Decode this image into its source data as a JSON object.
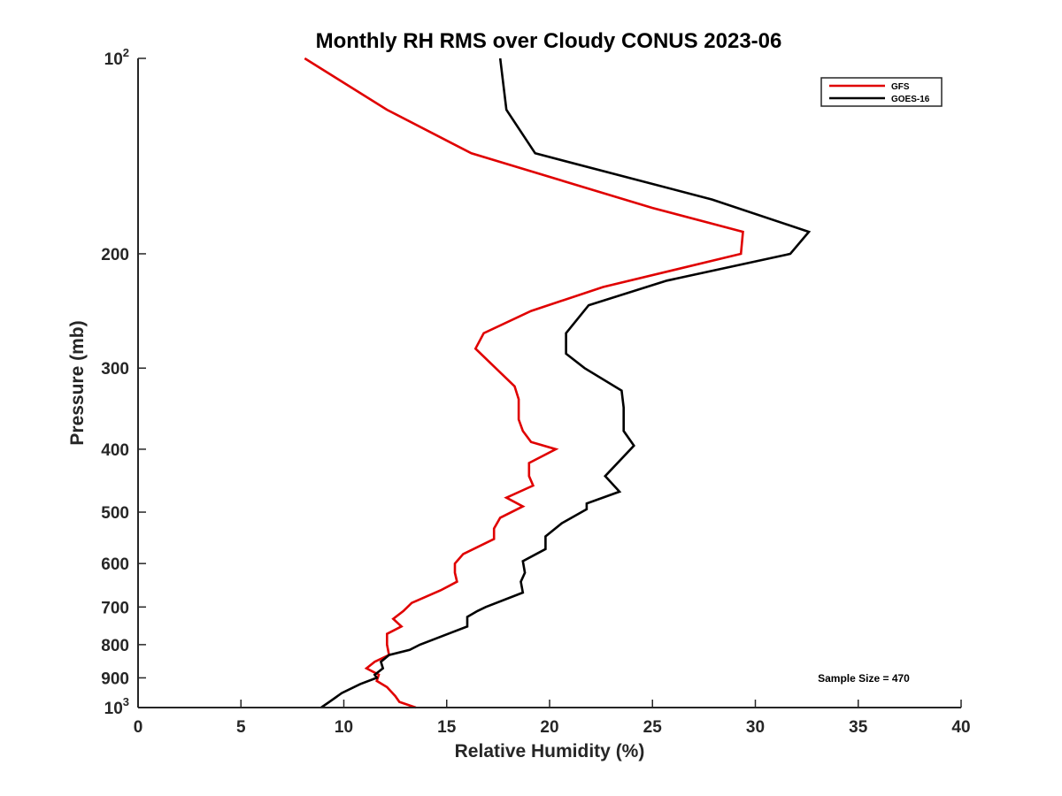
{
  "chart_data": {
    "type": "line",
    "title": "Monthly RH RMS over Cloudy CONUS  2023-06",
    "xlabel": "Relative Humidity (%)",
    "ylabel": "Pressure (mb)",
    "xlim": [
      0,
      40
    ],
    "ylim": [
      100,
      1000
    ],
    "y_scale": "log",
    "y_reversed": true,
    "grid": false,
    "legend_position": "top-right",
    "x_ticks": [
      "0",
      "5",
      "10",
      "15",
      "20",
      "25",
      "30",
      "35",
      "40"
    ],
    "y_ticks": [
      {
        "value": 100,
        "base": "10",
        "exp": "2"
      },
      {
        "value": 200,
        "label": "200"
      },
      {
        "value": 300,
        "label": "300"
      },
      {
        "value": 400,
        "label": "400"
      },
      {
        "value": 500,
        "label": "500"
      },
      {
        "value": 600,
        "label": "600"
      },
      {
        "value": 700,
        "label": "700"
      },
      {
        "value": 800,
        "label": "800"
      },
      {
        "value": 900,
        "label": "900"
      },
      {
        "value": 1000,
        "base": "10",
        "exp": "3"
      }
    ],
    "annotation": "Sample Size = 470",
    "series": [
      {
        "name": "GFS",
        "color": "#e00000",
        "points": [
          [
            8.1,
            100
          ],
          [
            12.1,
            120
          ],
          [
            16.2,
            140
          ],
          [
            25.0,
            170
          ],
          [
            29.4,
            185
          ],
          [
            29.3,
            200
          ],
          [
            22.6,
            225
          ],
          [
            19.1,
            245
          ],
          [
            16.8,
            265
          ],
          [
            16.4,
            280
          ],
          [
            18.3,
            320
          ],
          [
            18.5,
            335
          ],
          [
            18.5,
            360
          ],
          [
            18.7,
            375
          ],
          [
            19.1,
            390
          ],
          [
            20.3,
            400
          ],
          [
            19.0,
            420
          ],
          [
            19.0,
            440
          ],
          [
            19.2,
            455
          ],
          [
            17.9,
            475
          ],
          [
            18.7,
            490
          ],
          [
            17.6,
            510
          ],
          [
            17.3,
            530
          ],
          [
            17.3,
            550
          ],
          [
            15.8,
            580
          ],
          [
            15.4,
            600
          ],
          [
            15.4,
            620
          ],
          [
            15.5,
            640
          ],
          [
            14.7,
            660
          ],
          [
            13.3,
            690
          ],
          [
            12.9,
            710
          ],
          [
            12.4,
            730
          ],
          [
            12.8,
            750
          ],
          [
            12.1,
            770
          ],
          [
            12.1,
            800
          ],
          [
            12.2,
            830
          ],
          [
            11.5,
            850
          ],
          [
            11.1,
            870
          ],
          [
            11.7,
            890
          ],
          [
            11.6,
            910
          ],
          [
            12.1,
            930
          ],
          [
            12.5,
            960
          ],
          [
            12.7,
            980
          ],
          [
            13.5,
            1000
          ]
        ]
      },
      {
        "name": "GOES-16",
        "color": "#000000",
        "points": [
          [
            17.6,
            100
          ],
          [
            17.9,
            120
          ],
          [
            19.3,
            140
          ],
          [
            27.9,
            165
          ],
          [
            32.6,
            185
          ],
          [
            31.7,
            200
          ],
          [
            25.7,
            220
          ],
          [
            21.9,
            240
          ],
          [
            20.8,
            265
          ],
          [
            20.8,
            285
          ],
          [
            21.7,
            300
          ],
          [
            23.5,
            325
          ],
          [
            23.6,
            345
          ],
          [
            23.6,
            375
          ],
          [
            24.1,
            395
          ],
          [
            22.7,
            440
          ],
          [
            23.4,
            465
          ],
          [
            21.8,
            485
          ],
          [
            21.8,
            495
          ],
          [
            20.6,
            520
          ],
          [
            19.8,
            545
          ],
          [
            19.8,
            570
          ],
          [
            18.7,
            595
          ],
          [
            18.8,
            620
          ],
          [
            18.6,
            640
          ],
          [
            18.7,
            665
          ],
          [
            16.9,
            700
          ],
          [
            16.5,
            710
          ],
          [
            16.0,
            725
          ],
          [
            16.0,
            750
          ],
          [
            13.7,
            800
          ],
          [
            13.2,
            815
          ],
          [
            12.2,
            830
          ],
          [
            11.8,
            850
          ],
          [
            11.9,
            870
          ],
          [
            11.5,
            890
          ],
          [
            11.6,
            900
          ],
          [
            10.8,
            920
          ],
          [
            9.9,
            950
          ],
          [
            9.3,
            980
          ],
          [
            8.9,
            1000
          ]
        ]
      }
    ]
  }
}
